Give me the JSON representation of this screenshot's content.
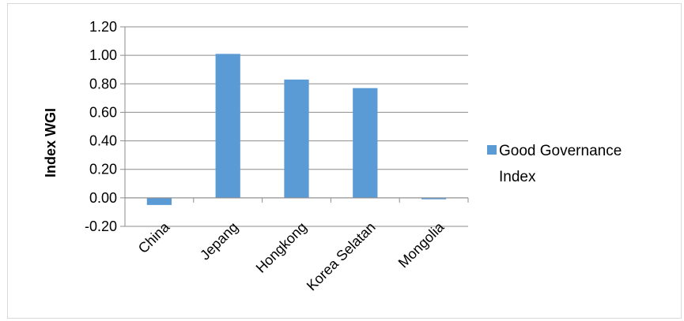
{
  "chart_data": {
    "type": "bar",
    "categories": [
      "China",
      "Jepang",
      "Hongkong",
      "Korea Selatan",
      "Mongolia"
    ],
    "series": [
      {
        "name": "Good Governance Index",
        "values": [
          -0.05,
          1.01,
          0.83,
          0.77,
          -0.01
        ],
        "color": "#5b9bd5"
      }
    ],
    "ylabel": "Index  WGI",
    "ylim": [
      -0.2,
      1.2
    ],
    "yticks": [
      "1.20",
      "1.00",
      "0.80",
      "0.60",
      "0.40",
      "0.20",
      "0.00",
      "-0.20"
    ],
    "legend": {
      "position": "right",
      "lines": [
        "Good Governance",
        "Index"
      ]
    },
    "grid": true
  }
}
